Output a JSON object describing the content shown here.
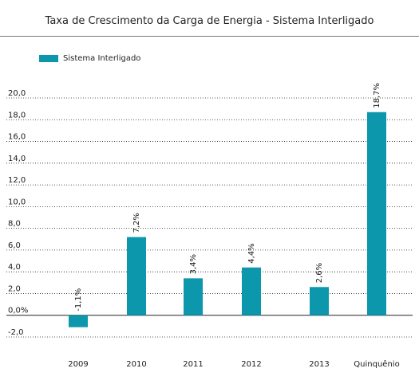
{
  "chart_data": {
    "type": "bar",
    "title": "Taxa de Crescimento da Carga de Energia - Sistema Interligado",
    "xlabel": "",
    "ylabel": "",
    "categories": [
      "2009",
      "2010",
      "2011",
      "2012",
      "2013",
      "Quinquênio"
    ],
    "series": [
      {
        "name": "Sistema Interligado",
        "values": [
          -1.1,
          7.2,
          3.4,
          4.4,
          2.6,
          18.7
        ],
        "labels": [
          "-1,1%",
          "7,2%",
          "3,4%",
          "4,4%",
          "2,6%",
          "18,7%"
        ]
      }
    ],
    "ylim": [
      -2,
      20
    ],
    "yticks": [
      20,
      18,
      16,
      14,
      12,
      10,
      8,
      6,
      4,
      2,
      0,
      -2
    ],
    "ytick_labels": [
      "20,0",
      "18,0",
      "16,0",
      "14,0",
      "12,0",
      "10,0",
      "8,0",
      "6,0",
      "4,0",
      "2,0",
      "0,0%",
      "-2,0"
    ],
    "grid": true,
    "legend_position": "top-left",
    "bar_color": "#0d97ad",
    "grid_color": "#222222"
  }
}
